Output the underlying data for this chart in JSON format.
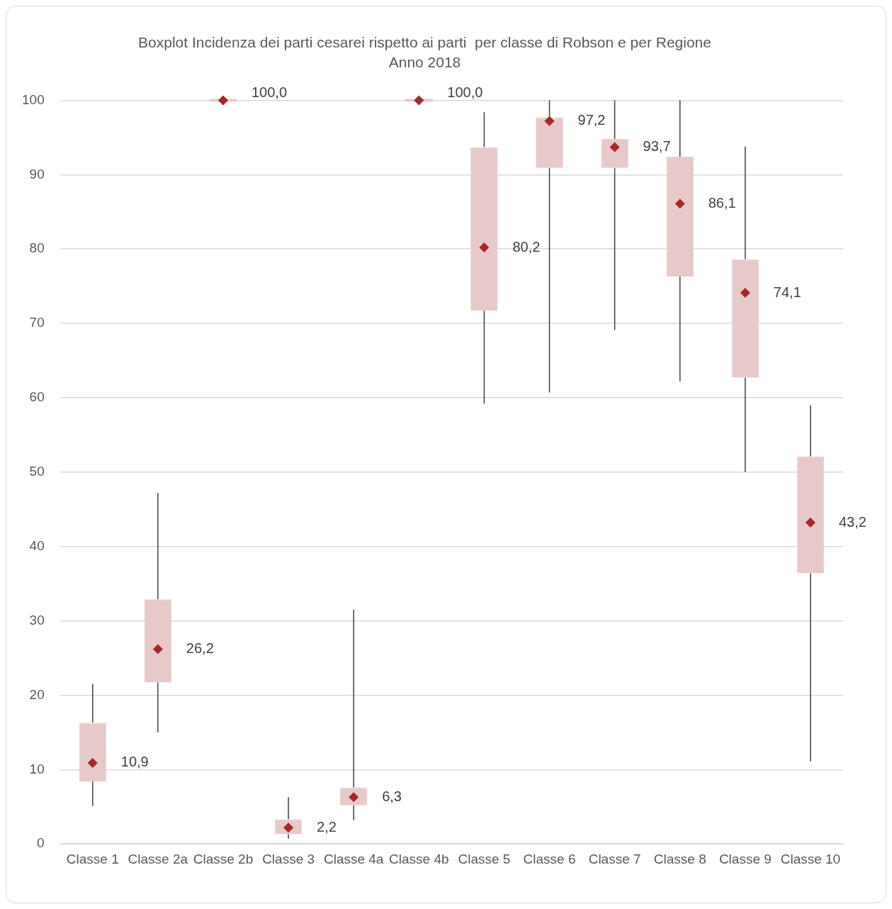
{
  "chart_data": {
    "type": "box",
    "title": "Boxplot Incidenza dei parti cesarei rispetto ai parti  per classe di Robson e per Regione",
    "subtitle": "Anno 2018",
    "categories": [
      "Classe 1",
      "Classe 2a",
      "Classe 2b",
      "Classe 3",
      "Classe 4a",
      "Classe 4b",
      "Classe 5",
      "Classe 6",
      "Classe 7",
      "Classe 8",
      "Classe 9",
      "Classe 10"
    ],
    "ylim": [
      0,
      100
    ],
    "yticks": [
      0,
      10,
      20,
      30,
      40,
      50,
      60,
      70,
      80,
      90,
      100
    ],
    "grid": "y",
    "legend": false,
    "series": [
      {
        "type": "box",
        "color": "#e8c9ca",
        "boxes": [
          {
            "low": 5.1,
            "q1": 8.4,
            "median": 10.9,
            "q3": 16.3,
            "high": 21.5
          },
          {
            "low": 15.0,
            "q1": 21.7,
            "median": 26.2,
            "q3": 32.9,
            "high": 47.2
          },
          {
            "low": 100,
            "q1": 100,
            "median": 100,
            "q3": 100,
            "high": 100
          },
          {
            "low": 0.7,
            "q1": 1.3,
            "median": 2.2,
            "q3": 3.3,
            "high": 6.3
          },
          {
            "low": 3.2,
            "q1": 5.2,
            "median": 6.3,
            "q3": 7.6,
            "high": 31.5
          },
          {
            "low": 100,
            "q1": 100,
            "median": 100,
            "q3": 100,
            "high": 100
          },
          {
            "low": 59.2,
            "q1": 71.7,
            "median": 80.2,
            "q3": 93.7,
            "high": 98.4
          },
          {
            "low": 60.7,
            "q1": 90.9,
            "median": 97.2,
            "q3": 97.7,
            "high": 100
          },
          {
            "low": 69.1,
            "q1": 90.9,
            "median": 93.7,
            "q3": 94.8,
            "high": 100
          },
          {
            "low": 62.2,
            "q1": 76.3,
            "median": 86.1,
            "q3": 92.4,
            "high": 100
          },
          {
            "low": 50.0,
            "q1": 62.7,
            "median": 74.1,
            "q3": 78.6,
            "high": 93.8
          },
          {
            "low": 11.1,
            "q1": 36.4,
            "median": 43.2,
            "q3": 52.1,
            "high": 59.0
          }
        ]
      }
    ],
    "marker": "diamond",
    "annotations": [
      {
        "text": "10,9",
        "x": "Classe 1",
        "y": 10.9
      },
      {
        "text": "26,2",
        "x": "Classe 2a",
        "y": 26.2
      },
      {
        "text": "100,0",
        "x": "Classe 2b",
        "y": 100
      },
      {
        "text": "2,2",
        "x": "Classe 3",
        "y": 2.2
      },
      {
        "text": "6,3",
        "x": "Classe 4a",
        "y": 6.3
      },
      {
        "text": "100,0",
        "x": "Classe 4b",
        "y": 100
      },
      {
        "text": "80,2",
        "x": "Classe 5",
        "y": 80.2
      },
      {
        "text": "97,2",
        "x": "Classe 6",
        "y": 97.2
      },
      {
        "text": "93,7",
        "x": "Classe 7",
        "y": 93.7
      },
      {
        "text": "86,1",
        "x": "Classe 8",
        "y": 86.1
      },
      {
        "text": "74,1",
        "x": "Classe 9",
        "y": 74.1
      },
      {
        "text": "43,2",
        "x": "Classe 10",
        "y": 43.2
      }
    ]
  }
}
